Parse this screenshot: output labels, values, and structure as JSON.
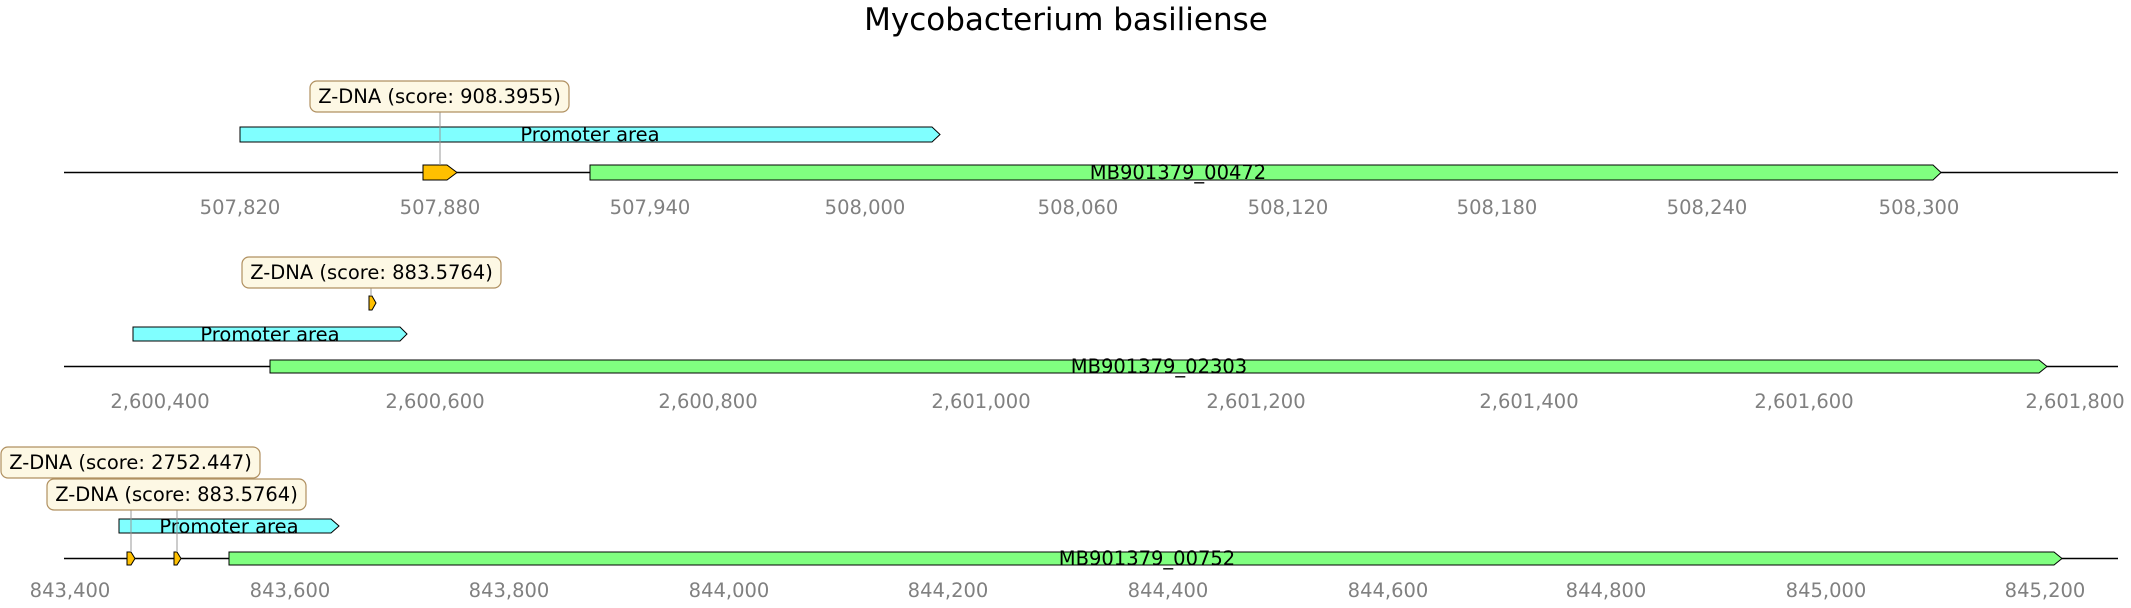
{
  "title": "Mycobacterium basiliense",
  "colors": {
    "promoter": "#80ffff",
    "gene": "#80ff80",
    "zdna": "#ffc000",
    "annotation_box": "#fdf8e4",
    "annotation_border": "#b09060",
    "axis": "#000000",
    "tick_text": "#808080"
  },
  "tracks": [
    {
      "ticks": [
        "507,820",
        "507,880",
        "507,940",
        "508,000",
        "508,060",
        "508,120",
        "508,180",
        "508,240",
        "508,300"
      ],
      "features": [
        {
          "type": "promoter",
          "label": "Promoter area"
        },
        {
          "type": "gene",
          "label": "MB901379_00472"
        },
        {
          "type": "zdna",
          "label": ""
        }
      ],
      "annotations": [
        "Z-DNA (score: 908.3955)"
      ]
    },
    {
      "ticks": [
        "2,600,400",
        "2,600,600",
        "2,600,800",
        "2,601,000",
        "2,601,200",
        "2,601,400",
        "2,601,600",
        "2,601,800"
      ],
      "features": [
        {
          "type": "promoter",
          "label": "Promoter area"
        },
        {
          "type": "gene",
          "label": "MB901379_02303"
        },
        {
          "type": "zdna",
          "label": ""
        }
      ],
      "annotations": [
        "Z-DNA (score: 883.5764)"
      ]
    },
    {
      "ticks": [
        "843,400",
        "843,600",
        "843,800",
        "844,000",
        "844,200",
        "844,400",
        "844,600",
        "844,800",
        "845,000",
        "845,200"
      ],
      "features": [
        {
          "type": "promoter",
          "label": "Promoter area"
        },
        {
          "type": "gene",
          "label": "MB901379_00752"
        },
        {
          "type": "zdna",
          "label": ""
        },
        {
          "type": "zdna",
          "label": ""
        }
      ],
      "annotations": [
        "Z-DNA (score: 2752.447)",
        "Z-DNA (score: 883.5764)"
      ]
    }
  ]
}
